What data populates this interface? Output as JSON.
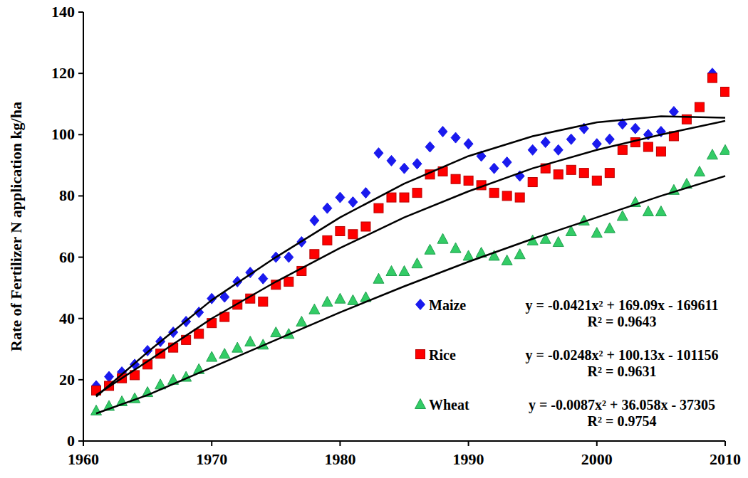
{
  "chart_data": {
    "type": "scatter",
    "y_label": "Rate of Fertilizer N application kg/ha",
    "x": [
      1961,
      1962,
      1963,
      1964,
      1965,
      1966,
      1967,
      1968,
      1969,
      1970,
      1971,
      1972,
      1973,
      1974,
      1975,
      1976,
      1977,
      1978,
      1979,
      1980,
      1981,
      1982,
      1983,
      1984,
      1985,
      1986,
      1987,
      1988,
      1989,
      1990,
      1991,
      1992,
      1993,
      1994,
      1995,
      1996,
      1997,
      1998,
      1999,
      2000,
      2001,
      2002,
      2003,
      2004,
      2005,
      2006,
      2007,
      2008,
      2009,
      2010
    ],
    "series": [
      {
        "name": "Maize",
        "color": "#1a1aee",
        "marker": "diamond",
        "values": [
          18,
          21,
          22.5,
          25,
          29.5,
          32.5,
          35.5,
          39,
          42,
          46.5,
          47,
          52,
          55,
          53,
          60,
          60,
          65,
          72,
          76,
          79.5,
          78,
          81,
          94,
          91.5,
          89,
          90.5,
          96,
          101,
          99,
          97,
          93,
          89,
          91,
          86.5,
          95,
          97.5,
          95,
          98.5,
          102,
          97,
          98.5,
          103.5,
          102,
          100,
          101,
          107.5,
          null,
          null,
          120,
          null
        ]
      },
      {
        "name": "Rice",
        "color": "#ff0000",
        "marker": "square",
        "values": [
          16.5,
          18,
          20.5,
          21.5,
          25,
          28.5,
          30.5,
          33,
          35,
          38.5,
          40.5,
          44.5,
          46.5,
          45.5,
          51,
          52,
          55.5,
          61,
          65.5,
          68.5,
          67.5,
          70,
          76,
          79.5,
          79.5,
          81,
          87,
          88,
          85.5,
          85,
          83.5,
          81,
          80,
          79.5,
          84.5,
          89,
          87,
          88.5,
          87.5,
          85,
          87.5,
          95,
          97.5,
          96,
          94.5,
          99.5,
          105,
          109,
          118.5,
          114
        ]
      },
      {
        "name": "Wheat",
        "color": "#33cc66",
        "marker": "triangle",
        "values": [
          10,
          11.5,
          13,
          14,
          16,
          18.5,
          20,
          21,
          23.5,
          27.5,
          28.5,
          30.5,
          32.5,
          31.5,
          35.5,
          35,
          39,
          43,
          45.5,
          46.5,
          46,
          47,
          53,
          55.5,
          55.5,
          58,
          62.5,
          66,
          63,
          60.5,
          61.5,
          60.5,
          59,
          61,
          65.5,
          66,
          65,
          68.5,
          72,
          68,
          69.5,
          73.5,
          78,
          75,
          75,
          82,
          84,
          88,
          93.5,
          95
        ]
      },
      {
        "type": "line",
        "color": "#000000",
        "line_style": "solid",
        "x": [
          1961,
          1965,
          1970,
          1975,
          1980,
          1985,
          1990,
          1995,
          2000,
          2005,
          2010
        ],
        "values": [
          14.5,
          29,
          46,
          60,
          73,
          84,
          93,
          99.5,
          104,
          106,
          105.5
        ]
      },
      {
        "type": "line",
        "color": "#000000",
        "line_style": "solid",
        "x": [
          1961,
          1965,
          1970,
          1975,
          1980,
          1985,
          1990,
          1995,
          2000,
          2005,
          2010
        ],
        "values": [
          15,
          26,
          40,
          52,
          63,
          73,
          81.5,
          89,
          95,
          100,
          104.5
        ]
      },
      {
        "type": "line",
        "color": "#000000",
        "line_style": "solid",
        "x": [
          1961,
          1965,
          1970,
          1975,
          1980,
          1985,
          1990,
          1995,
          2000,
          2005,
          2010
        ],
        "values": [
          9,
          15,
          24,
          33,
          42,
          50.5,
          58.5,
          66,
          73,
          80,
          86.5
        ]
      }
    ],
    "annotations": [
      {
        "text": "y = -0.0421x² + 169.09x - 169611"
      },
      {
        "text": "R² = 0.9643"
      },
      {
        "text": "y = -0.0248x² + 100.13x - 101156"
      },
      {
        "text": "R² = 0.9631"
      },
      {
        "text": "y = -0.0087x² + 36.058x - 37305"
      },
      {
        "text": "R² = 0.9754"
      }
    ],
    "xlim": [
      1960,
      2010
    ],
    "xticks": [
      1960,
      1970,
      1980,
      1990,
      2000,
      2010
    ],
    "ylim": [
      0,
      140
    ],
    "yticks": [
      0,
      20,
      40,
      60,
      80,
      100,
      120,
      140
    ],
    "grid": false,
    "legend": "lower right"
  }
}
